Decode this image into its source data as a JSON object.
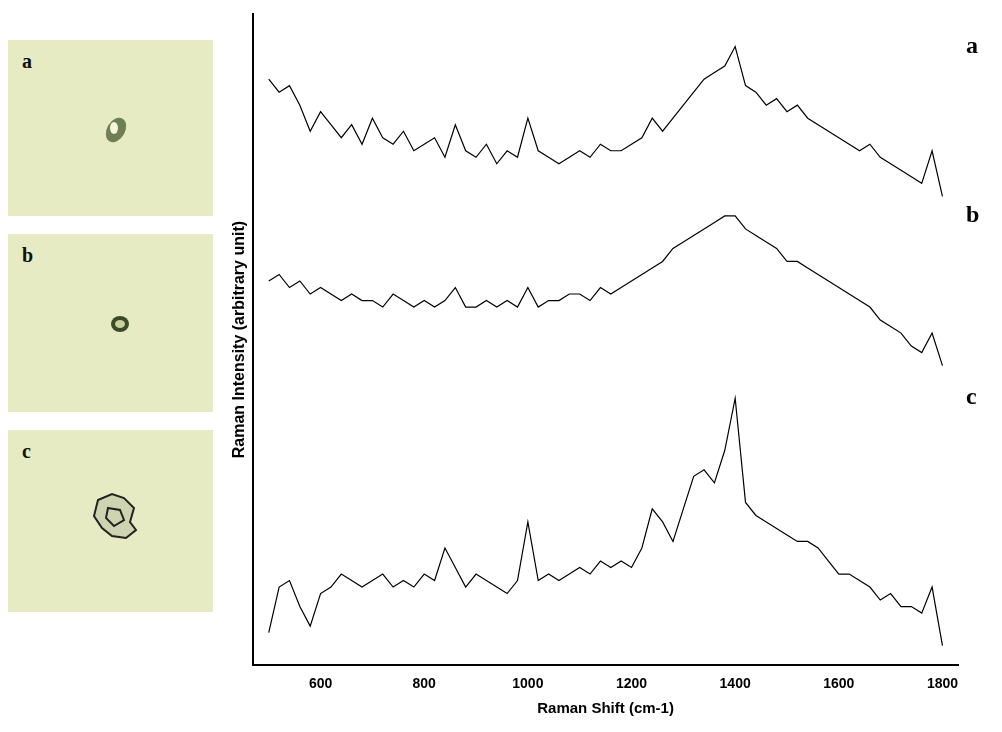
{
  "chart_data": {
    "type": "line",
    "x_label": "Raman Shift (cm-1)",
    "y_label": "Raman Intensity (arbitrary unit)",
    "x": [
      500,
      520,
      540,
      560,
      580,
      600,
      620,
      640,
      660,
      680,
      700,
      720,
      740,
      760,
      780,
      800,
      820,
      840,
      860,
      880,
      900,
      920,
      940,
      960,
      980,
      1000,
      1020,
      1040,
      1060,
      1080,
      1100,
      1120,
      1140,
      1160,
      1180,
      1200,
      1220,
      1240,
      1260,
      1280,
      1300,
      1320,
      1340,
      1360,
      1380,
      1400,
      1420,
      1440,
      1460,
      1480,
      1500,
      1520,
      1540,
      1560,
      1580,
      1600,
      1620,
      1640,
      1660,
      1680,
      1700,
      1720,
      1740,
      1760,
      1780,
      1800
    ],
    "series": [
      {
        "name": "a",
        "color": "#000000",
        "values": [
          90,
          88,
          89,
          86,
          82,
          85,
          83,
          81,
          83,
          80,
          84,
          81,
          80,
          82,
          79,
          80,
          81,
          78,
          83,
          79,
          78,
          80,
          77,
          79,
          78,
          84,
          79,
          78,
          77,
          78,
          79,
          78,
          80,
          79,
          79,
          80,
          81,
          84,
          82,
          84,
          86,
          88,
          90,
          91,
          92,
          95,
          89,
          88,
          86,
          87,
          85,
          86,
          84,
          83,
          82,
          81,
          80,
          79,
          80,
          78,
          77,
          76,
          75,
          74,
          79,
          72
        ]
      },
      {
        "name": "b",
        "color": "#000000",
        "values": [
          59,
          60,
          58,
          59,
          57,
          58,
          57,
          56,
          57,
          56,
          56,
          55,
          57,
          56,
          55,
          56,
          55,
          56,
          58,
          55,
          55,
          56,
          55,
          56,
          55,
          58,
          55,
          56,
          56,
          57,
          57,
          56,
          58,
          57,
          58,
          59,
          60,
          61,
          62,
          64,
          65,
          66,
          67,
          68,
          69,
          69,
          67,
          66,
          65,
          64,
          62,
          62,
          61,
          60,
          59,
          58,
          57,
          56,
          55,
          53,
          52,
          51,
          49,
          48,
          51,
          46
        ]
      },
      {
        "name": "c",
        "color": "#000000",
        "values": [
          5,
          12,
          13,
          9,
          6,
          11,
          12,
          14,
          13,
          12,
          13,
          14,
          12,
          13,
          12,
          14,
          13,
          18,
          15,
          12,
          14,
          13,
          12,
          11,
          13,
          22,
          13,
          14,
          13,
          14,
          15,
          14,
          16,
          15,
          16,
          15,
          18,
          24,
          22,
          19,
          24,
          29,
          30,
          28,
          33,
          41,
          25,
          23,
          22,
          21,
          20,
          19,
          19,
          18,
          16,
          14,
          14,
          13,
          12,
          10,
          11,
          9,
          9,
          8,
          12,
          3
        ]
      }
    ],
    "xlim": [
      470,
      1830
    ],
    "xticks": [
      600,
      800,
      1000,
      1200,
      1400,
      1600,
      1800
    ],
    "ylim": [
      0,
      100
    ],
    "yticks": [],
    "tick_labels": "x",
    "grid": false,
    "line_style": "solid",
    "marker": "none"
  },
  "image_labels": [
    "a",
    "b",
    "c"
  ]
}
